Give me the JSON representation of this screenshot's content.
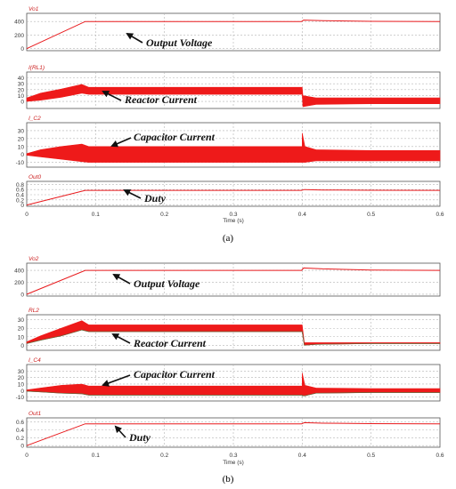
{
  "colors": {
    "trace": "#e8191c",
    "bar": "#ee1a1a",
    "grid": "#b4b4b4",
    "title": "#cc2020",
    "annot": "#111111",
    "olive": "#5a6a3a"
  },
  "captions": {
    "a": "(a)",
    "b": "(b)"
  },
  "chart_data": [
    {
      "id": "a",
      "type": "line",
      "xlabel": "Time (s)",
      "xlim": [
        0,
        0.6
      ],
      "xticks": [
        0,
        0.1,
        0.2,
        0.3,
        0.4,
        0.5,
        0.6
      ],
      "xticklabels": [
        "0",
        "0.1",
        "0.2",
        "0.3",
        "0.4",
        "0.5",
        "0.6"
      ],
      "panels": [
        {
          "name": "Vo1",
          "ylim": [
            -30,
            520
          ],
          "yticks": [
            0,
            200,
            400
          ],
          "annotation": "Output Voltage",
          "series": {
            "kind": "line",
            "x": [
              0,
              0.085,
              0.2,
              0.399,
              0.402,
              0.43,
              0.5,
              0.6
            ],
            "y": [
              0,
              400,
              400,
              400,
              420,
              412,
              402,
              400
            ]
          }
        },
        {
          "name": "I(RL1)",
          "ylim": [
            -12,
            50
          ],
          "yticks": [
            0,
            10,
            20,
            30,
            40
          ],
          "annotation": "Reactor Current",
          "series": {
            "kind": "band",
            "x": [
              0,
              0.02,
              0.05,
              0.08,
              0.09,
              0.2,
              0.4,
              0.401,
              0.42,
              0.5,
              0.6
            ],
            "upper": [
              6,
              14,
              21,
              29,
              24,
              24,
              24,
              10,
              6,
              6,
              6
            ],
            "lower": [
              0,
              2,
              7,
              14,
              12,
              12,
              12,
              -9,
              -5,
              -4,
              -4
            ]
          }
        },
        {
          "name": "I_C2",
          "ylim": [
            -16,
            40
          ],
          "yticks": [
            -10,
            0,
            10,
            20,
            30
          ],
          "annotation": "Capacitor Current",
          "series": {
            "kind": "band",
            "x": [
              0,
              0.02,
              0.05,
              0.08,
              0.09,
              0.2,
              0.3999,
              0.4,
              0.404,
              0.42,
              0.5,
              0.6
            ],
            "upper": [
              1,
              6,
              10,
              13,
              10,
              10,
              10,
              27,
              10,
              6,
              5,
              5
            ],
            "lower": [
              -1,
              -3,
              -6,
              -9,
              -10,
              -10,
              -10,
              -10,
              -10,
              -8,
              -8,
              -8
            ]
          }
        },
        {
          "name": "Out0",
          "ylim": [
            -0.05,
            0.92
          ],
          "yticks": [
            0,
            0.2,
            0.4,
            0.6,
            0.8
          ],
          "annotation": "Duty",
          "series": {
            "kind": "line",
            "x": [
              0,
              0.085,
              0.2,
              0.399,
              0.403,
              0.43,
              0.5,
              0.6
            ],
            "y": [
              0,
              0.57,
              0.57,
              0.57,
              0.6,
              0.585,
              0.575,
              0.57
            ]
          }
        }
      ]
    },
    {
      "id": "b",
      "type": "line",
      "xlabel": "Time (s)",
      "xlim": [
        0,
        0.6
      ],
      "xticks": [
        0,
        0.1,
        0.2,
        0.3,
        0.4,
        0.5,
        0.6
      ],
      "xticklabels": [
        "0",
        "0.1",
        "0.2",
        "0.3",
        "0.4",
        "0.5",
        "0.6"
      ],
      "panels": [
        {
          "name": "Vo2",
          "ylim": [
            -30,
            520
          ],
          "yticks": [
            0,
            200,
            400
          ],
          "annotation": "Output Voltage",
          "series": {
            "kind": "line",
            "x": [
              0,
              0.085,
              0.2,
              0.399,
              0.402,
              0.43,
              0.5,
              0.6
            ],
            "y": [
              0,
              400,
              400,
              400,
              440,
              425,
              405,
              400
            ]
          }
        },
        {
          "name": "RL2",
          "ylim": [
            -6,
            36
          ],
          "yticks": [
            0,
            10,
            20,
            30
          ],
          "annotation": "Reactor Current",
          "series": {
            "kind": "band",
            "x": [
              0,
              0.02,
              0.05,
              0.08,
              0.09,
              0.2,
              0.3999,
              0.4,
              0.403,
              0.42,
              0.5,
              0.6
            ],
            "upper": [
              4,
              11,
              20,
              29,
              24,
              24,
              24,
              24,
              3,
              3,
              3,
              3
            ],
            "lower": [
              2,
              6,
              11,
              18,
              16,
              16,
              16,
              16,
              0,
              1,
              2,
              2
            ]
          }
        },
        {
          "name": "I_C4",
          "ylim": [
            -16,
            40
          ],
          "yticks": [
            -10,
            0,
            10,
            20,
            30
          ],
          "annotation": "Capacitor Current",
          "series": {
            "kind": "band",
            "x": [
              0,
              0.02,
              0.05,
              0.08,
              0.09,
              0.2,
              0.3999,
              0.4,
              0.404,
              0.42,
              0.5,
              0.6
            ],
            "upper": [
              1,
              4,
              8,
              10,
              7,
              7,
              7,
              27,
              8,
              4,
              3,
              3
            ],
            "lower": [
              -1,
              -2,
              -4,
              -5,
              -7,
              -7,
              -7,
              -8,
              -8,
              -4,
              -3,
              -3
            ]
          }
        },
        {
          "name": "Out1",
          "ylim": [
            -0.04,
            0.7
          ],
          "yticks": [
            0,
            0.2,
            0.4,
            0.6
          ],
          "annotation": "Duty",
          "series": {
            "kind": "line",
            "x": [
              0,
              0.085,
              0.2,
              0.399,
              0.403,
              0.43,
              0.5,
              0.6
            ],
            "y": [
              0,
              0.55,
              0.55,
              0.55,
              0.58,
              0.565,
              0.555,
              0.55
            ]
          }
        }
      ]
    }
  ]
}
